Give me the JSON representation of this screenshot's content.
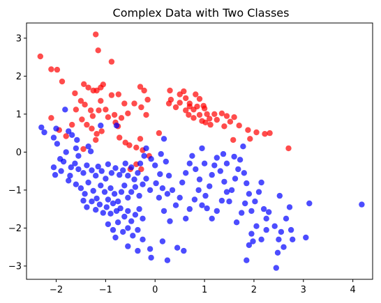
{
  "chart_data": {
    "type": "scatter",
    "title": "Complex Data with Two Classes",
    "xlabel": "",
    "ylabel": "",
    "xlim": [
      -2.6,
      4.4
    ],
    "ylim": [
      -3.35,
      3.4
    ],
    "x_ticks": [
      -2,
      -1,
      0,
      1,
      2,
      3,
      4
    ],
    "y_ticks": [
      -3,
      -2,
      -1,
      0,
      1,
      2,
      3
    ],
    "grid": false,
    "legend": "none",
    "marker_opacity": 0.7,
    "series": [
      {
        "color": "#ff0000",
        "points": [
          [
            -2.32,
            2.52
          ],
          [
            -2.1,
            2.18
          ],
          [
            -1.98,
            2.17
          ],
          [
            -1.88,
            1.86
          ],
          [
            -1.62,
            1.55
          ],
          [
            -1.44,
            1.79
          ],
          [
            -1.5,
            1.35
          ],
          [
            -1.35,
            1.7
          ],
          [
            -1.25,
            1.62
          ],
          [
            -1.18,
            1.62
          ],
          [
            -1.1,
            1.7
          ],
          [
            -1.05,
            1.78
          ],
          [
            -1.2,
            3.1
          ],
          [
            -1.15,
            2.68
          ],
          [
            -0.88,
            2.38
          ],
          [
            -1.42,
            1.25
          ],
          [
            -1.3,
            1.1
          ],
          [
            -1.26,
            0.95
          ],
          [
            -1.14,
            1.1
          ],
          [
            -1.1,
            1.35
          ],
          [
            -1.0,
            1.12
          ],
          [
            -1.38,
            0.72
          ],
          [
            -1.48,
            0.86
          ],
          [
            -1.6,
            1.12
          ],
          [
            -1.68,
            0.72
          ],
          [
            -2.1,
            0.9
          ],
          [
            -1.94,
            0.58
          ],
          [
            -1.8,
            0.42
          ],
          [
            -1.28,
            0.62
          ],
          [
            -1.18,
            0.48
          ],
          [
            -1.08,
            0.55
          ],
          [
            -1.2,
            0.32
          ],
          [
            -1.45,
            0.08
          ],
          [
            -0.95,
            0.92
          ],
          [
            -0.82,
            0.98
          ],
          [
            -0.88,
            1.5
          ],
          [
            -0.74,
            1.52
          ],
          [
            -0.62,
            1.28
          ],
          [
            -0.55,
            1.02
          ],
          [
            -0.42,
            1.28
          ],
          [
            -0.3,
            1.72
          ],
          [
            -0.22,
            1.62
          ],
          [
            -0.15,
            1.38
          ],
          [
            -0.28,
            1.18
          ],
          [
            -0.18,
            0.98
          ],
          [
            -0.68,
            0.9
          ],
          [
            -0.8,
            0.78
          ],
          [
            -0.75,
            0.68
          ],
          [
            -0.72,
            0.38
          ],
          [
            -0.6,
            0.25
          ],
          [
            -0.52,
            0.18
          ],
          [
            -0.38,
            0.12
          ],
          [
            -0.3,
            0.35
          ],
          [
            -0.25,
            0.05
          ],
          [
            -0.12,
            -0.1
          ],
          [
            -0.5,
            -0.45
          ],
          [
            -0.38,
            -0.32
          ],
          [
            -0.28,
            -0.45
          ],
          [
            0.08,
            0.5
          ],
          [
            0.3,
            1.62
          ],
          [
            0.32,
            1.38
          ],
          [
            0.28,
            1.28
          ],
          [
            0.42,
            1.18
          ],
          [
            0.5,
            1.52
          ],
          [
            0.58,
            1.6
          ],
          [
            0.62,
            1.42
          ],
          [
            0.7,
            1.28
          ],
          [
            0.78,
            1.12
          ],
          [
            0.82,
            1.52
          ],
          [
            0.9,
            1.4
          ],
          [
            0.98,
            1.22
          ],
          [
            1.05,
            1.0
          ],
          [
            0.68,
            0.98
          ],
          [
            0.62,
            1.1
          ],
          [
            0.78,
            0.9
          ],
          [
            0.9,
            0.98
          ],
          [
            1.0,
            1.15
          ],
          [
            1.1,
            0.88
          ],
          [
            1.12,
            0.72
          ],
          [
            1.02,
            0.78
          ],
          [
            1.25,
            0.85
          ],
          [
            1.35,
            1.02
          ],
          [
            1.45,
            0.95
          ],
          [
            1.52,
            0.8
          ],
          [
            1.6,
            0.92
          ],
          [
            1.4,
            0.68
          ],
          [
            1.7,
            0.7
          ],
          [
            1.88,
            0.58
          ],
          [
            1.58,
            0.32
          ],
          [
            1.92,
            0.35
          ],
          [
            2.05,
            0.52
          ],
          [
            2.22,
            0.48
          ],
          [
            2.32,
            0.5
          ],
          [
            2.7,
            0.1
          ],
          [
            0.7,
            1.2
          ],
          [
            0.5,
            1.3
          ],
          [
            0.85,
            1.2
          ],
          [
            1.2,
            1.0
          ],
          [
            0.95,
            0.82
          ]
        ]
      },
      {
        "color": "#0000ff",
        "points": [
          [
            -2.3,
            0.65
          ],
          [
            -2.24,
            0.52
          ],
          [
            -2.0,
            0.62
          ],
          [
            -2.05,
            0.38
          ],
          [
            -1.98,
            0.22
          ],
          [
            -1.82,
            1.12
          ],
          [
            -1.75,
            0.55
          ],
          [
            -1.68,
            0.45
          ],
          [
            -1.58,
            0.32
          ],
          [
            -1.1,
            0.7
          ],
          [
            -0.78,
            0.7
          ],
          [
            -1.35,
            0.15
          ],
          [
            -1.3,
            0.02
          ],
          [
            -1.6,
            0.1
          ],
          [
            -1.8,
            0.0
          ],
          [
            -1.92,
            -0.18
          ],
          [
            -2.05,
            -0.4
          ],
          [
            -1.85,
            -0.25
          ],
          [
            -1.7,
            -0.4
          ],
          [
            -1.62,
            -0.3
          ],
          [
            -1.55,
            -0.45
          ],
          [
            -1.45,
            -0.55
          ],
          [
            -1.38,
            -0.35
          ],
          [
            -1.28,
            -0.48
          ],
          [
            -1.2,
            -0.62
          ],
          [
            -1.15,
            -0.38
          ],
          [
            -1.08,
            -0.5
          ],
          [
            -1.0,
            -0.7
          ],
          [
            -0.95,
            -0.32
          ],
          [
            -0.88,
            -0.55
          ],
          [
            -0.8,
            -0.42
          ],
          [
            -0.72,
            -0.6
          ],
          [
            -0.65,
            -0.48
          ],
          [
            -0.6,
            -0.3
          ],
          [
            -0.55,
            -0.62
          ],
          [
            -0.48,
            -0.4
          ],
          [
            -0.42,
            -0.72
          ],
          [
            -0.35,
            -0.55
          ],
          [
            -0.3,
            -0.3
          ],
          [
            -0.22,
            -0.1
          ],
          [
            -0.18,
            0.1
          ],
          [
            -0.08,
            -0.18
          ],
          [
            0.0,
            -0.35
          ],
          [
            0.12,
            -0.05
          ],
          [
            0.22,
            -0.25
          ],
          [
            0.18,
            0.35
          ],
          [
            0.28,
            -0.62
          ],
          [
            0.1,
            -0.58
          ],
          [
            -1.75,
            -0.75
          ],
          [
            -1.6,
            -0.85
          ],
          [
            -1.5,
            -0.95
          ],
          [
            -1.42,
            -1.1
          ],
          [
            -1.35,
            -0.8
          ],
          [
            -1.25,
            -1.02
          ],
          [
            -1.18,
            -1.22
          ],
          [
            -1.1,
            -0.88
          ],
          [
            -1.02,
            -1.05
          ],
          [
            -0.95,
            -1.25
          ],
          [
            -0.9,
            -0.95
          ],
          [
            -0.82,
            -1.1
          ],
          [
            -0.75,
            -1.3
          ],
          [
            -0.68,
            -1.05
          ],
          [
            -0.62,
            -0.88
          ],
          [
            -0.55,
            -1.2
          ],
          [
            -0.48,
            -1.05
          ],
          [
            -0.4,
            -0.92
          ],
          [
            -0.32,
            -1.15
          ],
          [
            -0.25,
            -0.85
          ],
          [
            -0.18,
            -0.7
          ],
          [
            -0.1,
            -1.0
          ],
          [
            0.02,
            -0.82
          ],
          [
            0.08,
            -1.2
          ],
          [
            0.15,
            -0.95
          ],
          [
            0.25,
            -1.1
          ],
          [
            -1.45,
            -1.28
          ],
          [
            -1.38,
            -1.45
          ],
          [
            -1.28,
            -1.3
          ],
          [
            -1.2,
            -1.52
          ],
          [
            -1.12,
            -1.38
          ],
          [
            -1.05,
            -1.6
          ],
          [
            -0.98,
            -1.45
          ],
          [
            -0.9,
            -1.62
          ],
          [
            -0.85,
            -1.35
          ],
          [
            -0.78,
            -1.55
          ],
          [
            -0.7,
            -1.48
          ],
          [
            -0.62,
            -1.7
          ],
          [
            -0.55,
            -1.55
          ],
          [
            -0.48,
            -1.82
          ],
          [
            -0.4,
            -1.65
          ],
          [
            -0.32,
            -1.5
          ],
          [
            -0.25,
            -1.75
          ],
          [
            -0.95,
            -1.9
          ],
          [
            -0.85,
            -2.05
          ],
          [
            -0.75,
            -1.85
          ],
          [
            -0.65,
            -2.1
          ],
          [
            -0.55,
            -2.0
          ],
          [
            -0.45,
            -2.2
          ],
          [
            -0.35,
            -2.05
          ],
          [
            -0.25,
            -2.3
          ],
          [
            -0.55,
            -2.48
          ],
          [
            -0.35,
            -2.6
          ],
          [
            -0.1,
            -2.55
          ],
          [
            -0.08,
            -2.78
          ],
          [
            0.15,
            -2.35
          ],
          [
            0.25,
            -2.85
          ],
          [
            0.45,
            -2.52
          ],
          [
            0.58,
            -2.6
          ],
          [
            -0.8,
            -2.25
          ],
          [
            0.3,
            -1.82
          ],
          [
            0.18,
            -1.55
          ],
          [
            0.42,
            -1.4
          ],
          [
            0.5,
            -1.2
          ],
          [
            0.35,
            -1.0
          ],
          [
            0.55,
            -0.8
          ],
          [
            0.62,
            -0.55
          ],
          [
            0.7,
            -0.3
          ],
          [
            0.75,
            -0.1
          ],
          [
            0.82,
            -0.45
          ],
          [
            0.9,
            -0.72
          ],
          [
            0.88,
            -1.0
          ],
          [
            0.8,
            -1.25
          ],
          [
            0.7,
            -1.5
          ],
          [
            0.62,
            -1.75
          ],
          [
            0.95,
            -1.4
          ],
          [
            1.02,
            -1.15
          ],
          [
            1.1,
            -0.9
          ],
          [
            1.15,
            -0.6
          ],
          [
            1.2,
            -0.35
          ],
          [
            1.25,
            -0.15
          ],
          [
            1.32,
            -0.5
          ],
          [
            1.4,
            -0.78
          ],
          [
            1.45,
            -1.05
          ],
          [
            1.35,
            -1.28
          ],
          [
            1.25,
            -1.55
          ],
          [
            1.15,
            -1.75
          ],
          [
            1.05,
            -1.48
          ],
          [
            1.5,
            -1.3
          ],
          [
            1.55,
            -1.0
          ],
          [
            1.62,
            -0.7
          ],
          [
            1.68,
            -0.45
          ],
          [
            1.72,
            -0.2
          ],
          [
            1.8,
            -0.55
          ],
          [
            1.85,
            -0.82
          ],
          [
            1.9,
            -1.1
          ],
          [
            1.82,
            -1.35
          ],
          [
            1.75,
            -1.6
          ],
          [
            1.65,
            -1.85
          ],
          [
            1.95,
            -1.55
          ],
          [
            2.02,
            -1.3
          ],
          [
            2.1,
            -1.05
          ],
          [
            2.15,
            -0.8
          ],
          [
            2.2,
            -1.5
          ],
          [
            2.25,
            -1.75
          ],
          [
            2.3,
            -1.58
          ],
          [
            2.05,
            -1.95
          ],
          [
            1.95,
            -2.15
          ],
          [
            1.9,
            -2.45
          ],
          [
            1.85,
            -2.85
          ],
          [
            1.98,
            -2.35
          ],
          [
            2.15,
            -2.3
          ],
          [
            2.25,
            -2.05
          ],
          [
            2.42,
            -1.95
          ],
          [
            2.5,
            -2.3
          ],
          [
            2.55,
            -2.1
          ],
          [
            2.65,
            -1.75
          ],
          [
            2.6,
            -2.5
          ],
          [
            2.48,
            -2.65
          ],
          [
            2.78,
            -2.3
          ],
          [
            2.75,
            -2.05
          ],
          [
            2.72,
            -1.45
          ],
          [
            2.52,
            -1.15
          ],
          [
            2.45,
            -3.05
          ],
          [
            3.05,
            -2.25
          ],
          [
            3.12,
            -1.35
          ],
          [
            4.18,
            -1.38
          ],
          [
            1.0,
            -0.3
          ],
          [
            1.38,
            -0.05
          ],
          [
            0.95,
            0.1
          ],
          [
            1.45,
            -0.3
          ],
          [
            1.6,
            -0.12
          ],
          [
            1.78,
            0.15
          ],
          [
            -1.55,
            -0.1
          ],
          [
            -1.9,
            -0.5
          ],
          [
            -2.02,
            -0.6
          ],
          [
            -1.72,
            -0.62
          ]
        ]
      }
    ]
  }
}
